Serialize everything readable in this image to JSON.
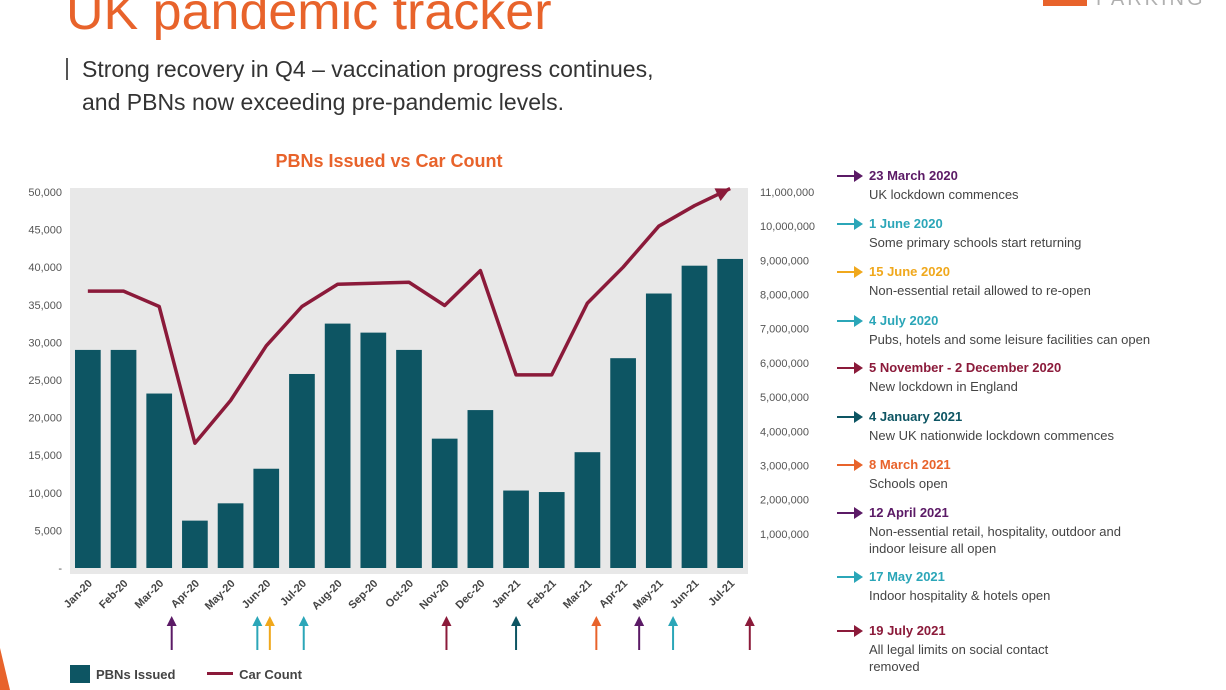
{
  "header": {
    "title": "UK pandemic tracker",
    "brand": "PARKING",
    "subtitle_line1": "Strong recovery in Q4 – vaccination progress continues,",
    "subtitle_line2": "and PBNs now exceeding pre-pandemic levels."
  },
  "chart_data": {
    "type": "bar",
    "title": "PBNs Issued vs Car Count",
    "categories": [
      "Jan-20",
      "Feb-20",
      "Mar-20",
      "Apr-20",
      "May-20",
      "Jun-20",
      "Jul-20",
      "Aug-20",
      "Sep-20",
      "Oct-20",
      "Nov-20",
      "Dec-20",
      "Jan-21",
      "Feb-21",
      "Mar-21",
      "Apr-21",
      "May-21",
      "Jun-21",
      "Jul-21"
    ],
    "series": [
      {
        "name": "PBNs Issued",
        "type": "bar",
        "axis": "left",
        "color": "#0d5563",
        "values": [
          29000,
          29000,
          23200,
          6300,
          8600,
          13200,
          25800,
          32500,
          31300,
          29000,
          17200,
          21000,
          10300,
          10100,
          15400,
          27900,
          36500,
          40200,
          41100
        ]
      },
      {
        "name": "Car Count",
        "type": "line",
        "axis": "right",
        "color": "#8b1a3a",
        "values": [
          8100000,
          8100000,
          7650000,
          3650000,
          4900000,
          6500000,
          7650000,
          8300000,
          8330000,
          8360000,
          7680000,
          8700000,
          5650000,
          5650000,
          7750000,
          8800000,
          10000000,
          10600000,
          11100000
        ]
      }
    ],
    "y_left": {
      "ylim": [
        0,
        50000
      ],
      "ticks": [
        0,
        5000,
        10000,
        15000,
        20000,
        25000,
        30000,
        35000,
        40000,
        45000,
        50000
      ],
      "tick_labels": [
        "-",
        "5,000",
        "10,000",
        "15,000",
        "20,000",
        "25,000",
        "30,000",
        "35,000",
        "40,000",
        "45,000",
        "50,000"
      ]
    },
    "y_right": {
      "ylim": [
        0,
        11000000
      ],
      "ticks": [
        1000000,
        2000000,
        3000000,
        4000000,
        5000000,
        6000000,
        7000000,
        8000000,
        9000000,
        10000000,
        11000000
      ],
      "tick_labels": [
        "1,000,000",
        "2,000,000",
        "3,000,000",
        "4,000,000",
        "5,000,000",
        "6,000,000",
        "7,000,000",
        "8,000,000",
        "9,000,000",
        "10,000,000",
        "11,000,000"
      ]
    },
    "grid": false,
    "event_markers": [
      {
        "category_index": 2.35,
        "color": "#5b1a66"
      },
      {
        "category_index": 4.75,
        "color": "#2ba6b8"
      },
      {
        "category_index": 5.1,
        "color": "#f0a81c"
      },
      {
        "category_index": 6.05,
        "color": "#2ba6b8"
      },
      {
        "category_index": 10.05,
        "color": "#8b1a3a"
      },
      {
        "category_index": 12.0,
        "color": "#0d5563"
      },
      {
        "category_index": 14.25,
        "color": "#e8632b"
      },
      {
        "category_index": 15.45,
        "color": "#5b1a66"
      },
      {
        "category_index": 16.4,
        "color": "#2ba6b8"
      },
      {
        "category_index": 18.55,
        "color": "#8b1a3a"
      }
    ]
  },
  "timeline": [
    {
      "date": "23 March 2020",
      "desc": "UK lockdown commences",
      "color": "#5b1a66"
    },
    {
      "date": "1 June 2020",
      "desc": "Some primary schools start returning",
      "color": "#2ba6b8"
    },
    {
      "date": "15 June 2020",
      "desc": "Non-essential retail allowed to re-open",
      "color": "#f0a81c"
    },
    {
      "date": "4 July 2020",
      "desc": "Pubs, hotels and some leisure facilities can open",
      "color": "#2ba6b8"
    },
    {
      "date": "5 November - 2 December 2020",
      "desc": "New lockdown in England",
      "color": "#8b1a3a"
    },
    {
      "date": "4 January 2021",
      "desc": "New UK nationwide lockdown commences",
      "color": "#0d5563"
    },
    {
      "date": "8 March 2021",
      "desc": "Schools open",
      "color": "#e8632b"
    },
    {
      "date": "12 April 2021",
      "desc": "Non-essential retail, hospitality, outdoor and indoor leisure all open",
      "color": "#5b1a66"
    },
    {
      "date": "17 May 2021",
      "desc": "Indoor hospitality & hotels open",
      "color": "#2ba6b8"
    },
    {
      "date": "19 July 2021",
      "desc": "All legal limits on social contact removed",
      "color": "#8b1a3a"
    }
  ],
  "legend": {
    "bar_label": "PBNs Issued",
    "line_label": "Car Count"
  }
}
